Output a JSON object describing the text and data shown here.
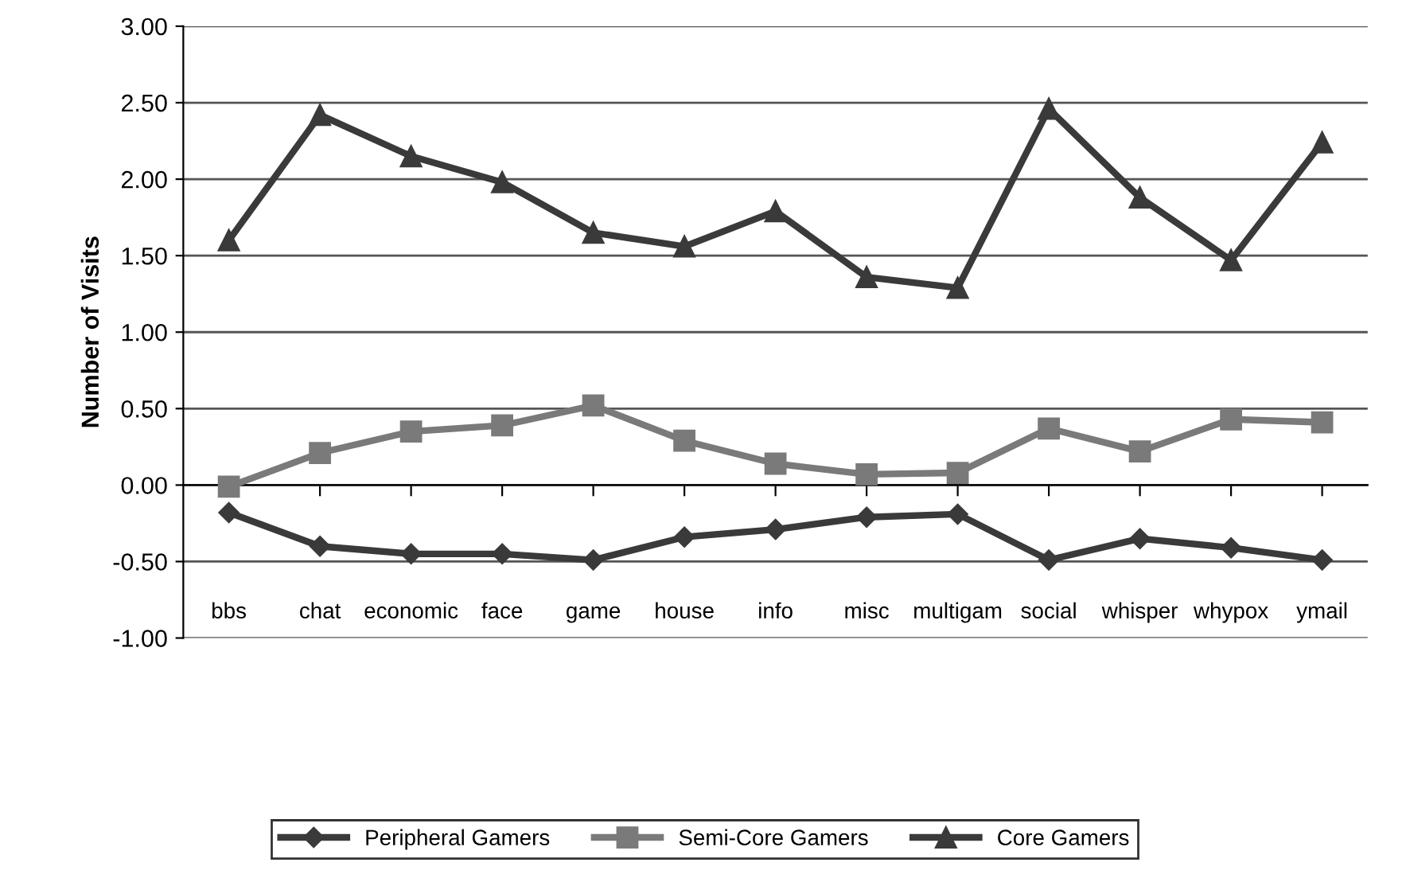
{
  "chart_data": {
    "type": "line",
    "ylabel": "Number of Visits",
    "categories": [
      "bbs",
      "chat",
      "economic",
      "face",
      "game",
      "house",
      "info",
      "misc",
      "multigam",
      "social",
      "whisper",
      "whypox",
      "ymail"
    ],
    "series": [
      {
        "name": "Peripheral Gamers",
        "color": "#3a3a3a",
        "marker": "diamond",
        "values": [
          -0.18,
          -0.4,
          -0.45,
          -0.45,
          -0.49,
          -0.34,
          -0.29,
          -0.21,
          -0.19,
          -0.49,
          -0.35,
          -0.41,
          -0.49
        ]
      },
      {
        "name": "Semi-Core Gamers",
        "color": "#7a7a7a",
        "marker": "square",
        "values": [
          -0.01,
          0.21,
          0.35,
          0.39,
          0.52,
          0.29,
          0.14,
          0.07,
          0.08,
          0.37,
          0.22,
          0.43,
          0.41
        ]
      },
      {
        "name": "Core Gamers",
        "color": "#3a3a3a",
        "marker": "triangle",
        "values": [
          1.6,
          2.42,
          2.15,
          1.98,
          1.65,
          1.56,
          1.79,
          1.36,
          1.29,
          2.46,
          1.88,
          1.47,
          2.24
        ]
      }
    ],
    "ylim": [
      -1.0,
      3.0
    ],
    "yticks": [
      {
        "value": -1.0,
        "label": "-1.00"
      },
      {
        "value": -0.5,
        "label": "-0.50"
      },
      {
        "value": 0,
        "label": "0.00"
      },
      {
        "value": 0.5,
        "label": "0.50"
      },
      {
        "value": 1.0,
        "label": "1.00"
      },
      {
        "value": 1.5,
        "label": "1.50"
      },
      {
        "value": 2.0,
        "label": "2.00"
      },
      {
        "value": 2.5,
        "label": "2.50"
      },
      {
        "value": 3.0,
        "label": "3.00"
      }
    ],
    "grid": "y",
    "legend": "bottom",
    "line_style": "solid"
  }
}
